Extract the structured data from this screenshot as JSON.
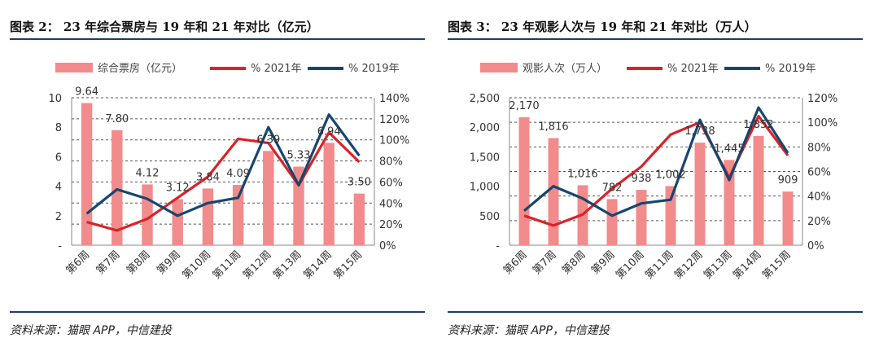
{
  "colors": {
    "bar": "#f28b8b",
    "line2021": "#d9232a",
    "line2019": "#17466e",
    "rule": "#1f3c6e"
  },
  "panels": [
    {
      "title": "图表 2：  23 年综合票房与 19 年和 21 年对比（亿元）",
      "source": "资料来源：猫眼 APP，中信建投",
      "chart_data": {
        "type": "bar",
        "categories": [
          "第6周",
          "第7周",
          "第8周",
          "第9周",
          "第10周",
          "第11周",
          "第12周",
          "第13周",
          "第14周",
          "第15周"
        ],
        "legend": [
          "综合票房（亿元）",
          "% 2021年",
          "% 2019年"
        ],
        "bar_values": [
          9.64,
          7.8,
          4.12,
          3.12,
          3.84,
          4.09,
          6.39,
          5.33,
          6.94,
          3.5
        ],
        "bar_labels": [
          "9.64",
          "7.80",
          "4.12",
          "3.12",
          "3.84",
          "4.09",
          "6.39",
          "5.33",
          "6.94",
          "3.50"
        ],
        "series": [
          {
            "name": "% 2021年",
            "values": [
              22,
              14,
              25,
              45,
              65,
              101,
              97,
              57,
              107,
              79
            ]
          },
          {
            "name": "% 2019年",
            "values": [
              30,
              53,
              44,
              28,
              40,
              45,
              112,
              57,
              124,
              85
            ]
          }
        ],
        "left_ylim": [
          0,
          10
        ],
        "left_ticks": [
          "-",
          "2",
          "4",
          "6",
          "8",
          "10"
        ],
        "right_ylim": [
          0,
          140
        ],
        "right_ticks": [
          "0%",
          "20%",
          "40%",
          "60%",
          "80%",
          "100%",
          "120%",
          "140%"
        ]
      }
    },
    {
      "title": "图表 3：  23 年观影人次与 19 年和 21 年对比（万人）",
      "source": "资料来源：猫眼 APP，中信建投",
      "chart_data": {
        "type": "bar",
        "categories": [
          "第6周",
          "第7周",
          "第8周",
          "第9周",
          "第10周",
          "第11周",
          "第12周",
          "第13周",
          "第14周",
          "第15周"
        ],
        "legend": [
          "观影人次（万人）",
          "% 2021年",
          "% 2019年"
        ],
        "bar_values": [
          2170,
          1816,
          1016,
          782,
          938,
          1002,
          1738,
          1445,
          1852,
          909
        ],
        "bar_labels": [
          "2,170",
          "1,816",
          "1,016",
          "782",
          "938",
          "1,002",
          "1,738",
          "1,445",
          "1,852",
          "909"
        ],
        "series": [
          {
            "name": "% 2021年",
            "values": [
              24,
              16,
              25,
              46,
              64,
              90,
              100,
              55,
              105,
              73
            ]
          },
          {
            "name": "% 2019年",
            "values": [
              28,
              48,
              38,
              24,
              34,
              37,
              102,
              53,
              112,
              75
            ]
          }
        ],
        "left_ylim": [
          0,
          2500
        ],
        "left_ticks": [
          "-",
          "500",
          "1,000",
          "1,500",
          "2,000",
          "2,500"
        ],
        "right_ylim": [
          0,
          120
        ],
        "right_ticks": [
          "0%",
          "20%",
          "40%",
          "60%",
          "80%",
          "100%",
          "120%"
        ]
      }
    }
  ]
}
